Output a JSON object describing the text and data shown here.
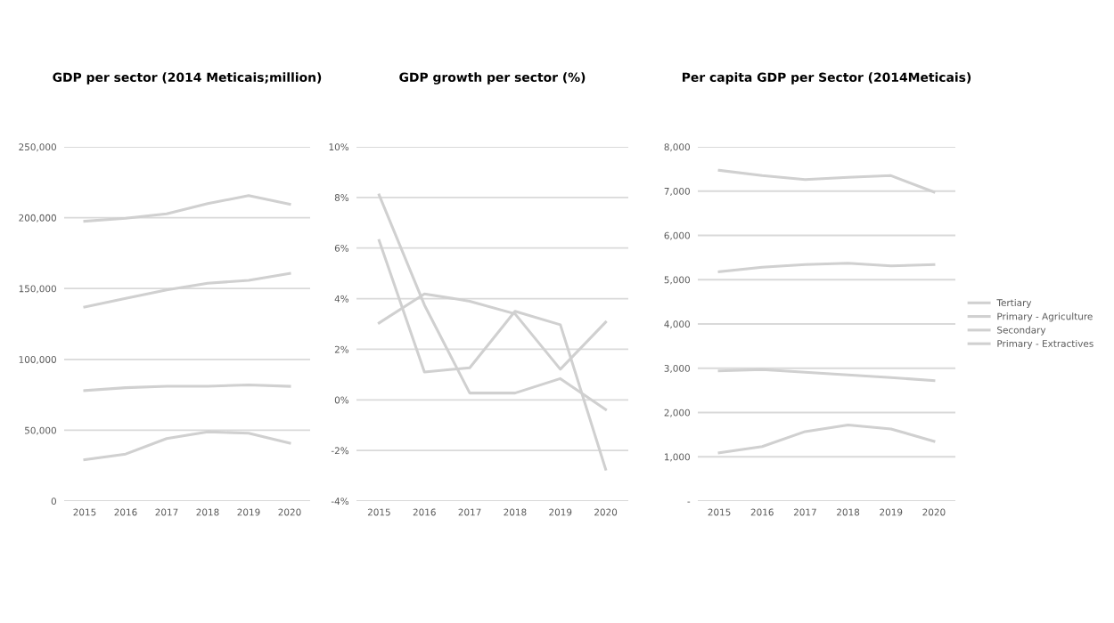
{
  "chart_data": [
    {
      "type": "line",
      "title": "GDP per sector (2014 Meticais;million)",
      "categories": [
        "2015",
        "2016",
        "2017",
        "2018",
        "2019",
        "2020"
      ],
      "ylim": [
        0,
        250000
      ],
      "yticks": [
        {
          "value": 0,
          "label": "0"
        },
        {
          "value": 50000,
          "label": "50,000"
        },
        {
          "value": 100000,
          "label": "100,000"
        },
        {
          "value": 150000,
          "label": "150,000"
        },
        {
          "value": 200000,
          "label": "200,000"
        },
        {
          "value": 250000,
          "label": "250,000"
        }
      ],
      "grid": "y",
      "legend": false,
      "series": [
        {
          "color": "#d0d0d0",
          "values": [
            197500,
            199600,
            202700,
            209900,
            215600,
            209500
          ]
        },
        {
          "color": "#d0d0d0",
          "values": [
            137000,
            143000,
            149000,
            153700,
            155800,
            160600
          ]
        },
        {
          "color": "#d0d0d0",
          "values": [
            78000,
            80000,
            81000,
            81000,
            82000,
            81000
          ]
        },
        {
          "color": "#d0d0d0",
          "values": [
            29200,
            33200,
            44100,
            48900,
            47900,
            40900
          ]
        }
      ]
    },
    {
      "type": "line",
      "title": "GDP growth per sector (%)",
      "categories": [
        "2015",
        "2016",
        "2017",
        "2018",
        "2019",
        "2020"
      ],
      "ylim": [
        -4,
        10
      ],
      "yticks": [
        {
          "value": -4,
          "label": "-4%"
        },
        {
          "value": -2,
          "label": "-2%"
        },
        {
          "value": 0,
          "label": "0%"
        },
        {
          "value": 2,
          "label": "2%"
        },
        {
          "value": 4,
          "label": "4%"
        },
        {
          "value": 6,
          "label": "6%"
        },
        {
          "value": 8,
          "label": "8%"
        },
        {
          "value": 10,
          "label": "10%"
        }
      ],
      "grid": "y",
      "legend": false,
      "series": [
        {
          "color": "#d0d0d0",
          "values": [
            8.1,
            3.75,
            0.27,
            0.27,
            0.84,
            -0.38
          ]
        },
        {
          "color": "#d0d0d0",
          "values": [
            6.3,
            1.1,
            1.27,
            3.5,
            2.97,
            -2.74
          ]
        },
        {
          "color": "#d0d0d0",
          "values": [
            3.04,
            4.19,
            3.9,
            3.4,
            1.21,
            3.07
          ]
        }
      ]
    },
    {
      "type": "line",
      "title": "Per capita GDP per Sector (2014Meticais)",
      "categories": [
        "2015",
        "2016",
        "2017",
        "2018",
        "2019",
        "2020"
      ],
      "ylim": [
        0,
        8000
      ],
      "yticks": [
        {
          "value": 0,
          "label": "-"
        },
        {
          "value": 1000,
          "label": "1,000"
        },
        {
          "value": 2000,
          "label": "2,000"
        },
        {
          "value": 3000,
          "label": "3,000"
        },
        {
          "value": 4000,
          "label": "4,000"
        },
        {
          "value": 5000,
          "label": "5,000"
        },
        {
          "value": 6000,
          "label": "6,000"
        },
        {
          "value": 7000,
          "label": "7,000"
        },
        {
          "value": 8000,
          "label": "8,000"
        }
      ],
      "grid": "y",
      "legend": "right",
      "series": [
        {
          "name": "Tertiary",
          "color": "#d0d0d0",
          "values": [
            7470,
            7350,
            7260,
            7310,
            7350,
            6980
          ]
        },
        {
          "name": "Primary - Agriculture",
          "color": "#d0d0d0",
          "values": [
            5180,
            5280,
            5340,
            5370,
            5310,
            5340
          ]
        },
        {
          "name": "Secondary",
          "color": "#d0d0d0",
          "values": [
            2940,
            2970,
            2910,
            2850,
            2790,
            2720
          ]
        },
        {
          "name": "Primary - Extractives",
          "color": "#d0d0d0",
          "values": [
            1090,
            1230,
            1570,
            1720,
            1630,
            1350
          ]
        }
      ]
    }
  ]
}
